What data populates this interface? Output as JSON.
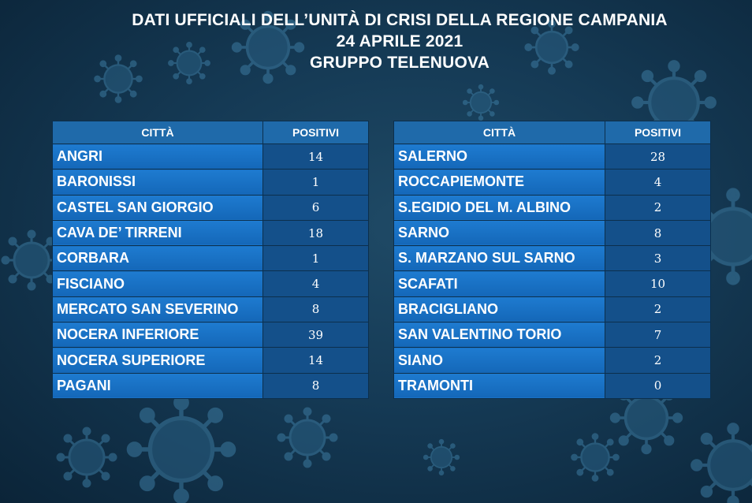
{
  "header": {
    "line1": "DATI UFFICIALI DELL’UNITÀ DI CRISI DELLA REGIONE CAMPANIA",
    "line2": "24 APRILE 2021",
    "line3": "GRUPPO TELENUOVA"
  },
  "columns": {
    "city": "CITTÀ",
    "positives": "POSITIVI"
  },
  "left_table": [
    {
      "city": "ANGRI",
      "positives": "14"
    },
    {
      "city": "BARONISSI",
      "positives": "1"
    },
    {
      "city": "CASTEL SAN GIORGIO",
      "positives": "6"
    },
    {
      "city": "CAVA DE’ TIRRENI",
      "positives": "18"
    },
    {
      "city": "CORBARA",
      "positives": "1"
    },
    {
      "city": "FISCIANO",
      "positives": "4"
    },
    {
      "city": "MERCATO SAN SEVERINO",
      "positives": "8"
    },
    {
      "city": "NOCERA INFERIORE",
      "positives": "39"
    },
    {
      "city": "NOCERA SUPERIORE",
      "positives": "14"
    },
    {
      "city": "PAGANI",
      "positives": "8"
    }
  ],
  "right_table": [
    {
      "city": "SALERNO",
      "positives": "28"
    },
    {
      "city": "ROCCAPIEMONTE",
      "positives": "4"
    },
    {
      "city": "S.EGIDIO DEL M. ALBINO",
      "positives": "2"
    },
    {
      "city": "SARNO",
      "positives": "8"
    },
    {
      "city": "S. MARZANO SUL SARNO",
      "positives": "3"
    },
    {
      "city": "SCAFATI",
      "positives": "10"
    },
    {
      "city": "BRACIGLIANO",
      "positives": "2"
    },
    {
      "city": "SAN VALENTINO TORIO",
      "positives": "7"
    },
    {
      "city": "SIANO",
      "positives": "2"
    },
    {
      "city": "TRAMONTI",
      "positives": "0"
    }
  ],
  "colors": {
    "background": "#153a55",
    "header_cell": "#1f6aaa",
    "city_cell": "#1a73c4",
    "number_cell": "#14508a",
    "text": "#ffffff"
  },
  "icons": [
    "virus-icon"
  ]
}
